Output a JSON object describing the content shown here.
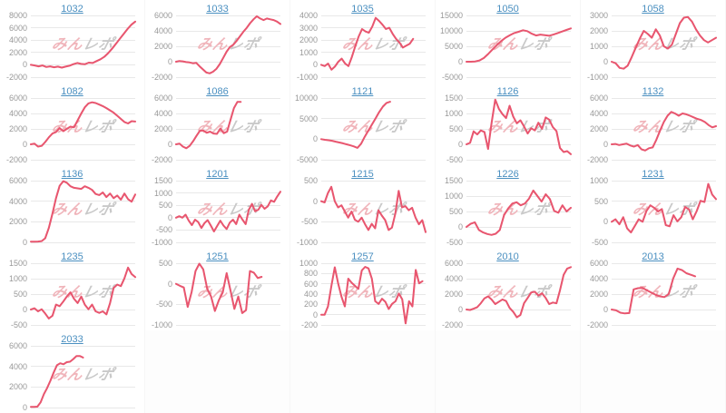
{
  "style": {
    "line_color": "#e8566f",
    "link_color": "#4a8fc0",
    "tick_color": "#999999",
    "grid_color": "#e8e8e8",
    "watermark_pink": "#f0b4ba",
    "watermark_gray": "#c9c9c9"
  },
  "watermark": {
    "pink_part": "みん",
    "gray_part": "レポ"
  },
  "grid": {
    "columns": 5,
    "rows": 5,
    "filled_cells": 21,
    "empty_cells": 4
  },
  "chart_data": [
    {
      "type": "line",
      "title": "1032",
      "yticks": [
        8000,
        6000,
        4000,
        2000,
        0,
        -2000
      ],
      "span": 1.0,
      "values": [
        0,
        -100,
        -250,
        -100,
        -350,
        -250,
        -400,
        -300,
        -450,
        -300,
        -150,
        100,
        300,
        150,
        100,
        350,
        300,
        600,
        900,
        1300,
        1900,
        2600,
        3400,
        4200,
        5000,
        5800,
        6500,
        7000
      ]
    },
    {
      "type": "line",
      "title": "1033",
      "yticks": [
        6000,
        4000,
        2000,
        0,
        -2000
      ],
      "span": 1.0,
      "values": [
        0,
        100,
        50,
        -50,
        -100,
        -200,
        -150,
        -600,
        -1000,
        -1400,
        -1500,
        -1300,
        -900,
        -300,
        500,
        1300,
        1900,
        2200,
        2700,
        3300,
        3900,
        4400,
        5000,
        5500,
        5900,
        5600,
        5400,
        5600,
        5500,
        5400,
        5200,
        4900
      ]
    },
    {
      "type": "line",
      "title": "1035",
      "yticks": [
        4000,
        3000,
        2000,
        1000,
        0,
        -1000
      ],
      "span": 0.88,
      "values": [
        0,
        -100,
        100,
        -400,
        -150,
        250,
        500,
        100,
        -100,
        650,
        1500,
        2300,
        2900,
        2700,
        2600,
        3100,
        3800,
        3550,
        3250,
        2900,
        3000,
        2500,
        2100,
        1800,
        1400,
        1550,
        1700,
        2100
      ]
    },
    {
      "type": "line",
      "title": "1050",
      "yticks": [
        15000,
        10000,
        5000,
        0,
        -5000
      ],
      "span": 1.0,
      "values": [
        0,
        0,
        100,
        400,
        1200,
        2500,
        4000,
        5400,
        6700,
        7800,
        8600,
        9300,
        9700,
        10200,
        9900,
        9100,
        8500,
        8800,
        8600,
        8400,
        8800,
        9300,
        9800,
        10300,
        10800
      ]
    },
    {
      "type": "line",
      "title": "1058",
      "yticks": [
        3000,
        2000,
        1000,
        0,
        -1000
      ],
      "span": 1.0,
      "values": [
        0,
        -100,
        -400,
        -450,
        -250,
        300,
        900,
        1500,
        2000,
        1800,
        1550,
        2100,
        1700,
        1000,
        850,
        1100,
        1800,
        2500,
        2850,
        2900,
        2600,
        2100,
        1700,
        1400,
        1250,
        1400,
        1550
      ]
    },
    {
      "type": "line",
      "title": "1082",
      "yticks": [
        6000,
        4000,
        2000,
        0,
        -2000
      ],
      "span": 1.0,
      "values": [
        0,
        100,
        -300,
        -200,
        300,
        900,
        1400,
        1600,
        2100,
        1700,
        2000,
        2300,
        2200,
        3100,
        4000,
        4800,
        5300,
        5450,
        5350,
        5150,
        4950,
        4700,
        4400,
        4100,
        3700,
        3300,
        2900,
        2700,
        3000,
        2950
      ]
    },
    {
      "type": "line",
      "title": "1086",
      "yticks": [
        6000,
        4000,
        2000,
        0,
        -2000
      ],
      "span": 0.62,
      "values": [
        0,
        100,
        -300,
        -500,
        -200,
        400,
        1100,
        1750,
        1800,
        1500,
        1650,
        1400,
        1350,
        2050,
        1450,
        1650,
        3200,
        4700,
        5500,
        5500
      ]
    },
    {
      "type": "line",
      "title": "1121",
      "yticks": [
        10000,
        5000,
        0,
        -5000
      ],
      "span": 0.66,
      "values": [
        0,
        -150,
        -250,
        -400,
        -600,
        -800,
        -1000,
        -1250,
        -1500,
        -1750,
        -2100,
        -1100,
        600,
        2100,
        3600,
        5100,
        6600,
        7900,
        8800,
        9100
      ]
    },
    {
      "type": "line",
      "title": "1126",
      "yticks": [
        1500,
        1000,
        500,
        0,
        -500
      ],
      "span": 1.0,
      "values": [
        0,
        50,
        420,
        320,
        450,
        400,
        -150,
        700,
        1450,
        1150,
        980,
        850,
        1250,
        900,
        680,
        780,
        580,
        350,
        520,
        450,
        700,
        500,
        870,
        800,
        560,
        430,
        -120,
        -250,
        -220,
        -320
      ]
    },
    {
      "type": "line",
      "title": "1132",
      "yticks": [
        6000,
        4000,
        2000,
        0,
        -2000
      ],
      "span": 1.0,
      "values": [
        0,
        50,
        -100,
        0,
        100,
        -150,
        -300,
        -100,
        -650,
        -800,
        -500,
        -400,
        600,
        1800,
        2900,
        3700,
        4200,
        4000,
        3700,
        4000,
        3900,
        3700,
        3500,
        3300,
        3150,
        2900,
        2500,
        2200,
        2350
      ]
    },
    {
      "type": "line",
      "title": "1136",
      "yticks": [
        6000,
        4000,
        2000,
        0
      ],
      "span": 1.0,
      "values": [
        60,
        60,
        80,
        120,
        400,
        1400,
        2800,
        4300,
        5500,
        5950,
        5800,
        5450,
        5300,
        5250,
        5200,
        5450,
        5300,
        5100,
        4700,
        4600,
        4850,
        4400,
        4750,
        4300,
        4550,
        4150,
        4750,
        4200,
        3950,
        4650
      ]
    },
    {
      "type": "line",
      "title": "1201",
      "yticks": [
        1500,
        1000,
        500,
        0,
        -500,
        -1000
      ],
      "span": 1.0,
      "values": [
        0,
        60,
        0,
        120,
        -120,
        -300,
        -80,
        -180,
        -420,
        -220,
        -100,
        -320,
        -560,
        -340,
        -120,
        -320,
        -460,
        -200,
        -80,
        -260,
        120,
        -80,
        -260,
        320,
        560,
        260,
        320,
        520,
        360,
        460,
        700,
        640,
        860,
        1050
      ]
    },
    {
      "type": "line",
      "title": "1215",
      "yticks": [
        500,
        0,
        -500,
        -1000
      ],
      "span": 1.0,
      "values": [
        0,
        -30,
        200,
        350,
        0,
        -150,
        -100,
        -250,
        -400,
        -250,
        -450,
        -500,
        -400,
        -560,
        -700,
        -550,
        -660,
        -220,
        -350,
        -460,
        -700,
        -640,
        -300,
        250,
        -150,
        -120,
        -220,
        -160,
        -400,
        -560,
        -460,
        -750
      ]
    },
    {
      "type": "line",
      "title": "1226",
      "yticks": [
        1500,
        1000,
        500,
        0,
        -500
      ],
      "span": 1.0,
      "values": [
        0,
        100,
        150,
        -100,
        -180,
        -230,
        -260,
        -220,
        -100,
        380,
        600,
        760,
        800,
        700,
        760,
        920,
        1180,
        1000,
        820,
        1060,
        900,
        520,
        460,
        700,
        500,
        620
      ]
    },
    {
      "type": "line",
      "title": "1231",
      "yticks": [
        1000,
        500,
        0,
        -500
      ],
      "span": 1.0,
      "values": [
        0,
        60,
        -60,
        110,
        -160,
        -260,
        -100,
        60,
        0,
        260,
        400,
        340,
        250,
        310,
        -80,
        -110,
        160,
        10,
        110,
        360,
        300,
        60,
        260,
        510,
        480,
        920,
        660,
        550
      ]
    },
    {
      "type": "line",
      "title": "1235",
      "yticks": [
        1500,
        1000,
        500,
        0,
        -500
      ],
      "span": 1.0,
      "values": [
        0,
        40,
        -60,
        10,
        -130,
        -290,
        -200,
        160,
        110,
        260,
        420,
        560,
        350,
        210,
        420,
        160,
        10,
        160,
        -60,
        -110,
        -60,
        -160,
        210,
        700,
        810,
        760,
        1010,
        1360,
        1150,
        1050
      ]
    },
    {
      "type": "line",
      "title": "1251",
      "yticks": [
        500,
        0,
        -500,
        -1000
      ],
      "span": 0.82,
      "values": [
        0,
        -50,
        -90,
        -560,
        -200,
        310,
        490,
        350,
        -120,
        -310,
        -660,
        -400,
        -210,
        260,
        -160,
        -610,
        -310,
        -710,
        -640,
        310,
        270,
        140,
        170
      ]
    },
    {
      "type": "line",
      "title": "1257",
      "yticks": [
        1000,
        800,
        600,
        400,
        200,
        0,
        -200
      ],
      "span": 0.97,
      "values": [
        0,
        0,
        160,
        560,
        920,
        610,
        350,
        160,
        700,
        620,
        560,
        500,
        860,
        930,
        900,
        700,
        260,
        210,
        310,
        250,
        110,
        210,
        260,
        410,
        300,
        -170,
        260,
        160,
        870,
        610,
        650
      ]
    },
    {
      "type": "line",
      "title": "2010",
      "yticks": [
        6000,
        4000,
        2000,
        0,
        -2000
      ],
      "span": 1.0,
      "values": [
        0,
        -60,
        110,
        310,
        810,
        1450,
        1700,
        1300,
        710,
        1010,
        1310,
        1110,
        210,
        -310,
        -1010,
        -710,
        810,
        1510,
        2210,
        2310,
        1810,
        2110,
        1510,
        710,
        910,
        810,
        2510,
        4510,
        5310,
        5500
      ]
    },
    {
      "type": "line",
      "title": "2013",
      "yticks": [
        6000,
        4000,
        2000,
        0,
        -2000
      ],
      "span": 0.8,
      "values": [
        0,
        -110,
        -410,
        -510,
        -460,
        2610,
        2760,
        2810,
        2510,
        2210,
        1910,
        1710,
        1610,
        2010,
        4010,
        5310,
        5110,
        4710,
        4510,
        4310
      ]
    },
    {
      "type": "line",
      "title": "2033",
      "yticks": [
        6000,
        4000,
        2000,
        0
      ],
      "span": 0.5,
      "values": [
        60,
        60,
        90,
        510,
        1310,
        1910,
        2610,
        3410,
        4110,
        4310,
        4210,
        4410,
        4460,
        4710,
        5010,
        5010,
        4860
      ]
    }
  ]
}
